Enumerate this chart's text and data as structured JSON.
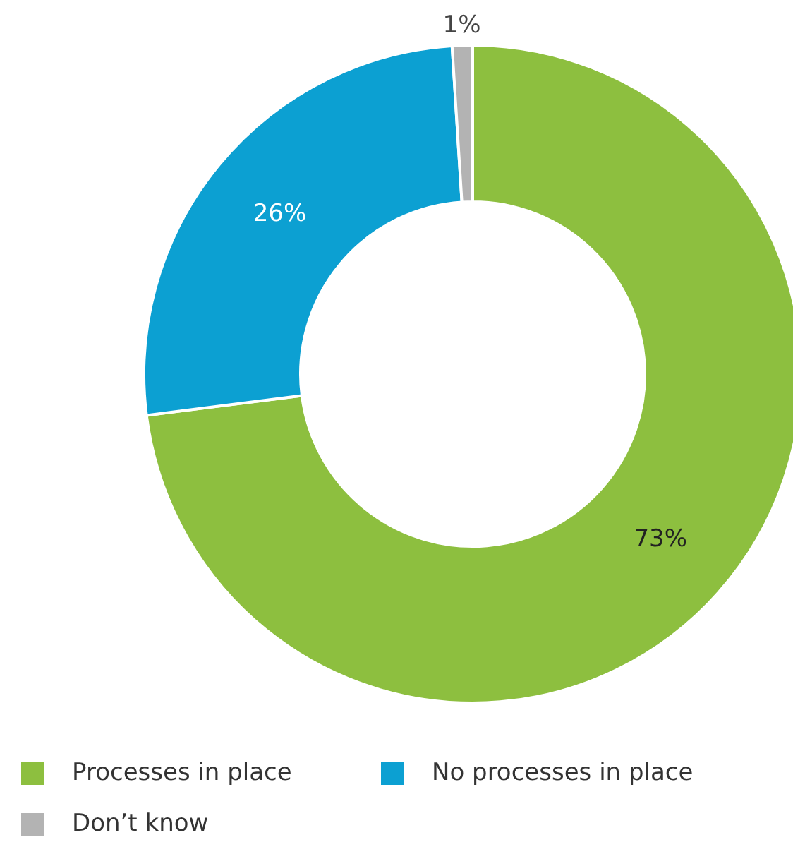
{
  "chart_data": {
    "type": "donut",
    "categories": [
      "Processes in place",
      "No processes in place",
      "Don’t know"
    ],
    "values": [
      73,
      26,
      1
    ],
    "colors": [
      "#8dbf3f",
      "#0ca0d2",
      "#b3b3b3"
    ],
    "value_labels": [
      "73%",
      "26%",
      "1%"
    ],
    "legend": "bottom left"
  }
}
